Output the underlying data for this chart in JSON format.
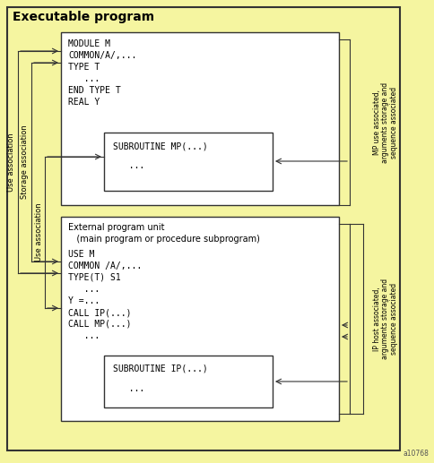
{
  "bg_color": "#f5f5a0",
  "box_color": "#ffffff",
  "line_color": "#333333",
  "title": "Executable program",
  "title_fontsize": 10,
  "code_fontsize": 7,
  "label_fontsize": 6.5,
  "figsize": [
    4.84,
    5.17
  ],
  "dpi": 100,
  "module_code": [
    "MODULE M",
    "COMMON/A/,...",
    "TYPE T",
    "   ...",
    "END TYPE T",
    "REAL Y"
  ],
  "mp_sub_code": [
    "SUBROUTINE MP(...)",
    "   ..."
  ],
  "ext_header": [
    "External program unit",
    "   (main program or procedure subprogram)"
  ],
  "ext_code": [
    "USE M",
    "COMMON /A/,...",
    "TYPE(T) S1",
    "   ...",
    "Y =...",
    "CALL IP(...)",
    "CALL MP(...)",
    "   ..."
  ],
  "ip_sub_code": [
    "SUBROUTINE IP(...)",
    "   ..."
  ],
  "right_label_mp": [
    "MP use associated,",
    "arguments storage and",
    "sequence associated"
  ],
  "right_label_ip": [
    "IP host associated,",
    "arguments storage and",
    "sequence associated"
  ],
  "left_labels": [
    "Use association",
    "Storage association",
    "Use association"
  ],
  "watermark": "a10768"
}
